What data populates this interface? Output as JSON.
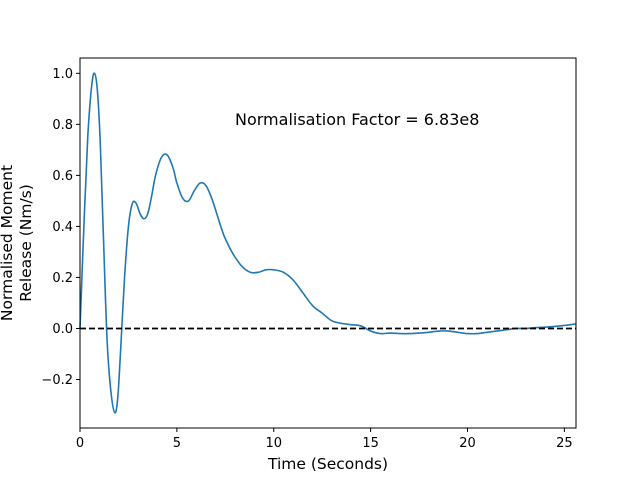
{
  "chart_data": {
    "type": "line",
    "title": "",
    "xlabel": "Time (Seconds)",
    "ylabel_lines": [
      "Normalised Moment",
      "Release (Nm/s)"
    ],
    "annotation": "Normalisation Factor = 6.83e8",
    "xlim": [
      0,
      25.6
    ],
    "ylim": [
      -0.39,
      1.06
    ],
    "xticks": [
      0,
      5,
      10,
      15,
      20,
      25
    ],
    "xtick_labels": [
      "0",
      "5",
      "10",
      "15",
      "20",
      "25"
    ],
    "yticks": [
      -0.2,
      0.0,
      0.2,
      0.4,
      0.6,
      0.8,
      1.0
    ],
    "ytick_labels": [
      "−0.2",
      "0.0",
      "0.2",
      "0.4",
      "0.6",
      "0.8",
      "1.0"
    ],
    "grid": false,
    "legend": "none",
    "reference_line": {
      "y": 0,
      "style": "dashed",
      "color": "#000000"
    },
    "series": [
      {
        "color": "#1f77b4",
        "x": [
          0,
          0.2,
          0.4,
          0.6,
          0.75,
          0.9,
          1.05,
          1.2,
          1.4,
          1.6,
          1.8,
          1.95,
          2.1,
          2.3,
          2.5,
          2.7,
          2.9,
          3.1,
          3.3,
          3.5,
          3.7,
          3.9,
          4.2,
          4.5,
          4.8,
          5.0,
          5.3,
          5.6,
          5.9,
          6.2,
          6.5,
          6.8,
          7.1,
          7.4,
          7.7,
          8.0,
          8.4,
          8.8,
          9.2,
          9.6,
          10.0,
          10.5,
          11.0,
          11.5,
          12.0,
          12.5,
          13.0,
          13.5,
          14.0,
          14.5,
          15.0,
          15.5,
          16.0,
          16.5,
          17.0,
          17.5,
          18.0,
          18.5,
          19.0,
          19.5,
          20.0,
          20.5,
          21.0,
          21.5,
          22.0,
          22.5,
          23.0,
          23.5,
          24.0,
          24.5,
          25.0,
          25.6
        ],
        "y": [
          0.0,
          0.4,
          0.75,
          0.95,
          1.0,
          0.93,
          0.72,
          0.38,
          -0.05,
          -0.25,
          -0.33,
          -0.27,
          -0.08,
          0.2,
          0.4,
          0.49,
          0.49,
          0.45,
          0.43,
          0.45,
          0.52,
          0.6,
          0.67,
          0.68,
          0.63,
          0.57,
          0.51,
          0.5,
          0.54,
          0.57,
          0.56,
          0.51,
          0.44,
          0.37,
          0.32,
          0.28,
          0.24,
          0.22,
          0.22,
          0.23,
          0.23,
          0.22,
          0.19,
          0.14,
          0.09,
          0.06,
          0.03,
          0.02,
          0.015,
          0.01,
          -0.01,
          -0.02,
          -0.018,
          -0.02,
          -0.02,
          -0.018,
          -0.015,
          -0.01,
          -0.01,
          -0.015,
          -0.02,
          -0.02,
          -0.015,
          -0.01,
          -0.005,
          0.0,
          0.0,
          0.003,
          0.005,
          0.008,
          0.012,
          0.018
        ]
      }
    ]
  }
}
